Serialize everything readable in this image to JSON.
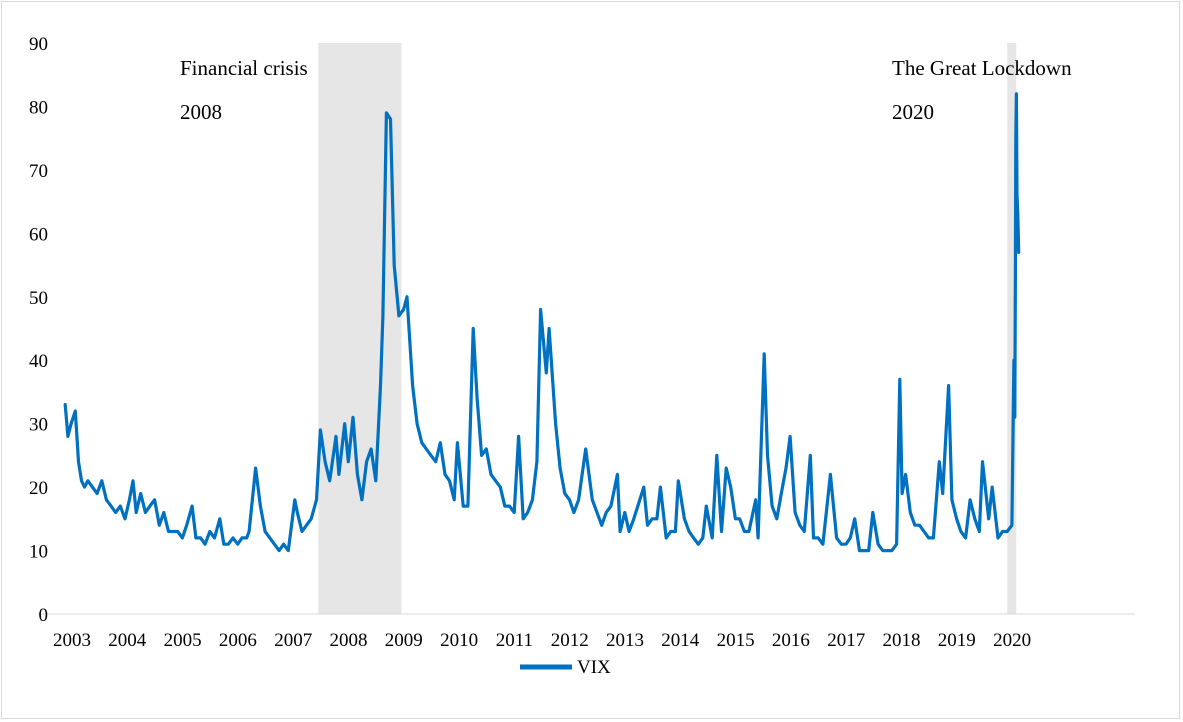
{
  "chart_data": {
    "type": "line",
    "title": "",
    "xlabel": "",
    "ylabel": "",
    "ylim": [
      0,
      90
    ],
    "xlim": [
      "2003-01-01",
      "2020-04-01"
    ],
    "yticks": [
      "0",
      "10",
      "20",
      "30",
      "40",
      "50",
      "60",
      "70",
      "80",
      "90"
    ],
    "xticks": [
      "2003",
      "2004",
      "2005",
      "2006",
      "2007",
      "2008",
      "2009",
      "2010",
      "2011",
      "2012",
      "2013",
      "2014",
      "2015",
      "2016",
      "2017",
      "2018",
      "2019",
      "2020"
    ],
    "grid": false,
    "legend": {
      "position": "bottom",
      "entries": [
        "VIX"
      ]
    },
    "color": "#0070c0",
    "shaded_periods": [
      {
        "start": "2007-08-01",
        "end": "2009-02-01",
        "color": "#e6e6e6"
      },
      {
        "start": "2020-01-15",
        "end": "2020-03-15",
        "color": "#e6e6e6"
      }
    ],
    "annotations": {
      "crisis_line1": "Financial crisis",
      "crisis_line2": "2008",
      "lockdown_line1": "The Great Lockdown",
      "lockdown_line2": "2020"
    },
    "series": [
      {
        "name": "VIX",
        "x": [
          "2003-01-02",
          "2003-01-20",
          "2003-02-10",
          "2003-03-10",
          "2003-03-31",
          "2003-04-20",
          "2003-05-10",
          "2003-06-01",
          "2003-07-01",
          "2003-08-01",
          "2003-09-01",
          "2003-10-01",
          "2003-11-01",
          "2003-12-01",
          "2004-01-01",
          "2004-02-01",
          "2004-03-01",
          "2004-03-25",
          "2004-04-15",
          "2004-05-15",
          "2004-06-15",
          "2004-07-15",
          "2004-08-15",
          "2004-09-15",
          "2004-10-15",
          "2004-11-15",
          "2004-12-15",
          "2005-01-15",
          "2005-02-15",
          "2005-03-15",
          "2005-04-20",
          "2005-05-15",
          "2005-06-15",
          "2005-07-15",
          "2005-08-15",
          "2005-09-15",
          "2005-10-20",
          "2005-11-15",
          "2005-12-15",
          "2006-01-15",
          "2006-02-15",
          "2006-03-15",
          "2006-04-15",
          "2006-05-01",
          "2006-06-13",
          "2006-07-15",
          "2006-08-15",
          "2006-09-15",
          "2006-10-15",
          "2006-11-15",
          "2006-12-15",
          "2007-01-15",
          "2007-02-27",
          "2007-03-15",
          "2007-04-15",
          "2007-05-15",
          "2007-06-15",
          "2007-07-20",
          "2007-08-15",
          "2007-09-15",
          "2007-10-15",
          "2007-11-26",
          "2007-12-15",
          "2008-01-22",
          "2008-02-15",
          "2008-03-17",
          "2008-04-15",
          "2008-05-15",
          "2008-06-15",
          "2008-07-15",
          "2008-08-15",
          "2008-09-15",
          "2008-10-01",
          "2008-10-24",
          "2008-11-20",
          "2008-12-15",
          "2009-01-15",
          "2009-02-15",
          "2009-03-09",
          "2009-04-15",
          "2009-05-15",
          "2009-06-15",
          "2009-07-15",
          "2009-08-15",
          "2009-09-15",
          "2009-10-15",
          "2009-11-15",
          "2009-12-15",
          "2010-01-15",
          "2010-02-05",
          "2010-03-15",
          "2010-04-15",
          "2010-05-20",
          "2010-06-15",
          "2010-07-15",
          "2010-08-15",
          "2010-09-15",
          "2010-10-15",
          "2010-11-15",
          "2010-12-15",
          "2011-01-15",
          "2011-02-15",
          "2011-03-16",
          "2011-04-15",
          "2011-05-15",
          "2011-06-15",
          "2011-07-15",
          "2011-08-08",
          "2011-09-15",
          "2011-10-03",
          "2011-11-15",
          "2011-12-15",
          "2012-01-15",
          "2012-02-15",
          "2012-03-15",
          "2012-04-15",
          "2012-06-01",
          "2012-07-15",
          "2012-08-15",
          "2012-09-15",
          "2012-10-15",
          "2012-11-15",
          "2012-12-28",
          "2013-01-15",
          "2013-02-15",
          "2013-03-15",
          "2013-04-15",
          "2013-06-20",
          "2013-07-15",
          "2013-08-15",
          "2013-09-15",
          "2013-10-08",
          "2013-11-15",
          "2013-12-15",
          "2014-01-15",
          "2014-02-03",
          "2014-03-15",
          "2014-04-15",
          "2014-05-15",
          "2014-06-15",
          "2014-07-15",
          "2014-08-07",
          "2014-09-15",
          "2014-10-15",
          "2014-11-15",
          "2014-12-16",
          "2015-01-15",
          "2015-02-15",
          "2015-03-15",
          "2015-04-15",
          "2015-05-15",
          "2015-06-29",
          "2015-07-15",
          "2015-08-24",
          "2015-09-15",
          "2015-10-15",
          "2015-11-15",
          "2015-12-15",
          "2016-01-15",
          "2016-02-11",
          "2016-03-15",
          "2016-04-15",
          "2016-05-15",
          "2016-06-24",
          "2016-07-15",
          "2016-08-15",
          "2016-09-15",
          "2016-11-04",
          "2016-12-15",
          "2017-01-15",
          "2017-02-15",
          "2017-03-15",
          "2017-04-13",
          "2017-05-15",
          "2017-06-15",
          "2017-07-15",
          "2017-08-11",
          "2017-09-15",
          "2017-10-15",
          "2017-11-15",
          "2017-12-15",
          "2018-01-15",
          "2018-02-05",
          "2018-02-20",
          "2018-03-15",
          "2018-04-15",
          "2018-05-15",
          "2018-06-15",
          "2018-07-15",
          "2018-08-15",
          "2018-09-15",
          "2018-10-24",
          "2018-11-15",
          "2018-12-24",
          "2019-01-15",
          "2019-02-15",
          "2019-03-15",
          "2019-04-15",
          "2019-05-15",
          "2019-06-15",
          "2019-07-15",
          "2019-08-05",
          "2019-09-15",
          "2019-10-08",
          "2019-11-15",
          "2019-12-15",
          "2020-01-15",
          "2020-02-15",
          "2020-02-28",
          "2020-03-05",
          "2020-03-09",
          "2020-03-12",
          "2020-03-16",
          "2020-03-20",
          "2020-03-25",
          "2020-03-31"
        ],
        "values": [
          33,
          28,
          30,
          32,
          24,
          21,
          20,
          21,
          20,
          19,
          21,
          18,
          17,
          16,
          17,
          15,
          18,
          21,
          16,
          19,
          16,
          17,
          18,
          14,
          16,
          13,
          13,
          13,
          12,
          14,
          17,
          12,
          12,
          11,
          13,
          12,
          15,
          11,
          11,
          12,
          11,
          12,
          12,
          13,
          23,
          17,
          13,
          12,
          11,
          10,
          11,
          10,
          18,
          16,
          13,
          14,
          15,
          18,
          29,
          24,
          21,
          28,
          22,
          30,
          24,
          31,
          22,
          18,
          24,
          26,
          21,
          36,
          47,
          79,
          78,
          55,
          47,
          48,
          50,
          36,
          30,
          27,
          26,
          25,
          24,
          27,
          22,
          21,
          18,
          27,
          17,
          17,
          45,
          34,
          25,
          26,
          22,
          21,
          20,
          17,
          17,
          16,
          28,
          15,
          16,
          18,
          24,
          48,
          38,
          45,
          30,
          23,
          19,
          18,
          16,
          18,
          26,
          18,
          16,
          14,
          16,
          17,
          22,
          13,
          16,
          13,
          15,
          20,
          14,
          15,
          15,
          20,
          12,
          13,
          13,
          21,
          15,
          13,
          12,
          11,
          12,
          17,
          12,
          25,
          13,
          23,
          20,
          15,
          15,
          13,
          13,
          18,
          12,
          41,
          25,
          17,
          15,
          19,
          23,
          28,
          16,
          14,
          13,
          25,
          12,
          12,
          11,
          22,
          12,
          11,
          11,
          12,
          15,
          10,
          10,
          10,
          16,
          11,
          10,
          10,
          10,
          11,
          37,
          19,
          22,
          16,
          14,
          14,
          13,
          12,
          12,
          24,
          19,
          36,
          18,
          15,
          13,
          12,
          18,
          15,
          13,
          24,
          15,
          20,
          12,
          13,
          13,
          14,
          40,
          31,
          54,
          75,
          82,
          66,
          63,
          57
        ]
      }
    ]
  }
}
